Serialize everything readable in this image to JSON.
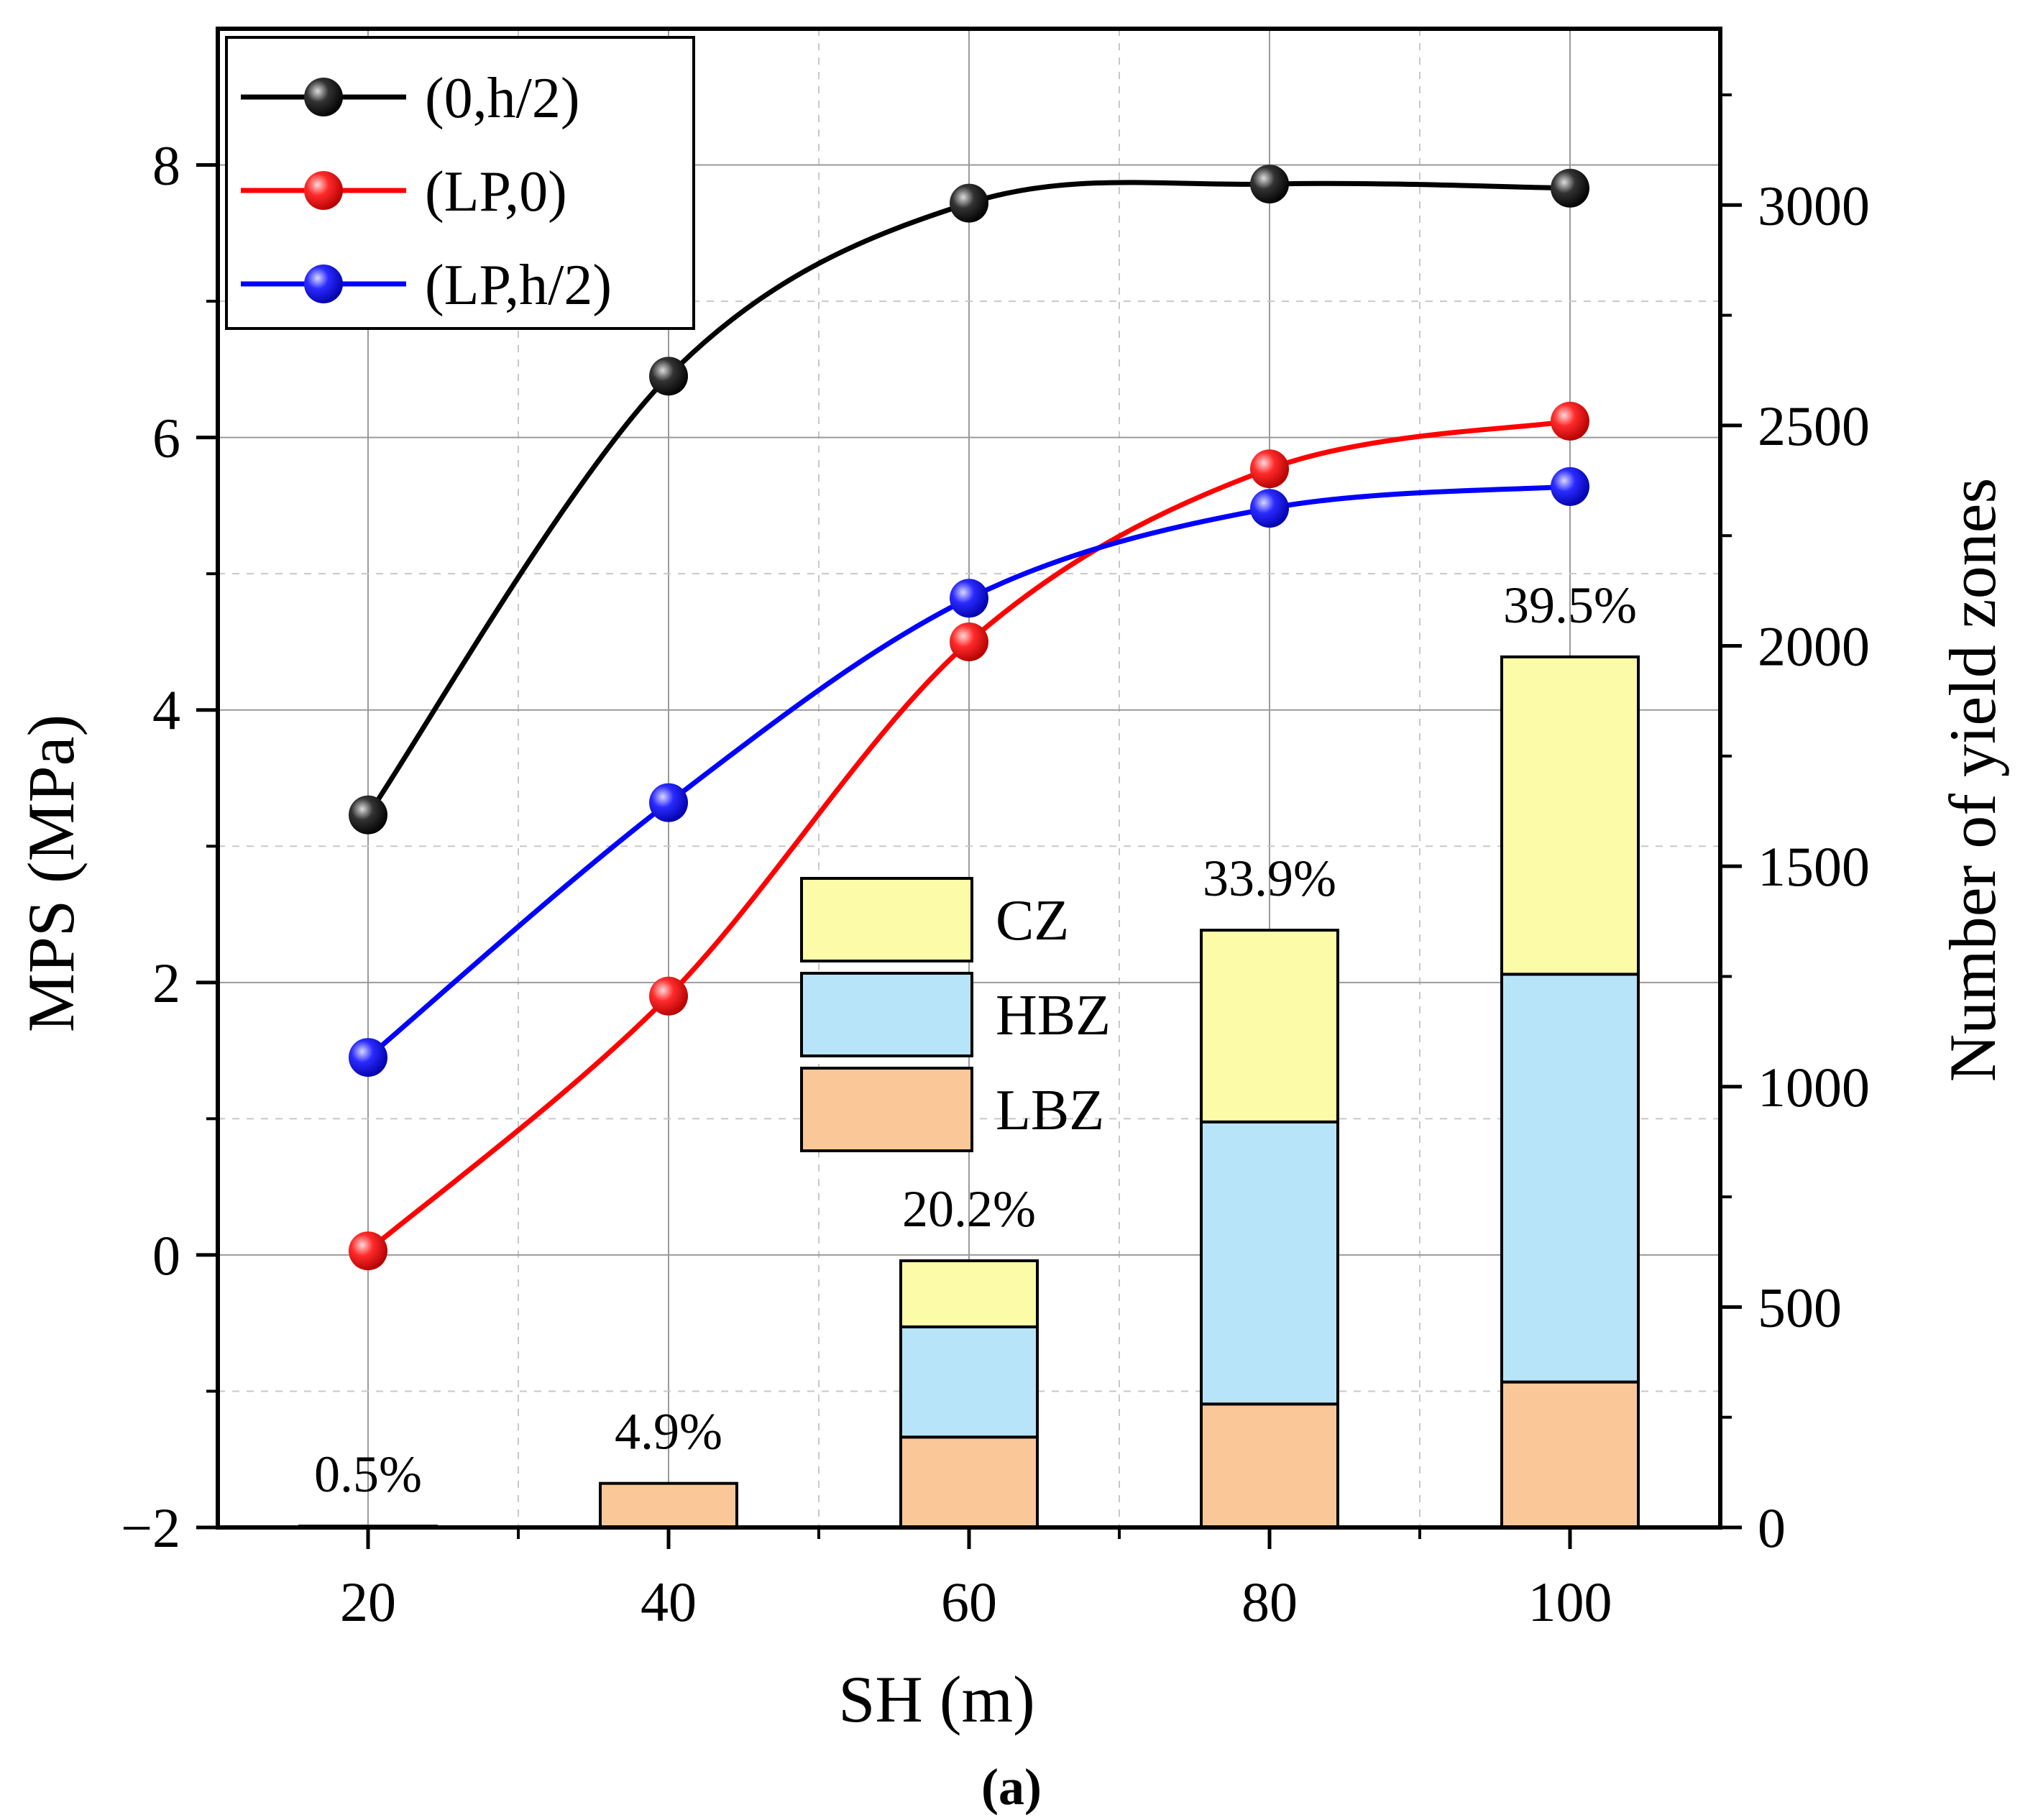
{
  "chart_data": {
    "type": "line+stacked-bar",
    "x": [
      20,
      40,
      60,
      80,
      100
    ],
    "xlabel": "SH (m)",
    "xticks": [
      "20",
      "40",
      "60",
      "80",
      "100"
    ],
    "xlim": [
      10,
      110
    ],
    "ylabel_left": "MPS (MPa)",
    "ylim_left": [
      -2,
      9
    ],
    "yticks_left": [
      "−2",
      "0",
      "2",
      "4",
      "6",
      "8"
    ],
    "ylabel_right": "Number of yield zones",
    "ylim_right": [
      0,
      3400
    ],
    "yticks_right": [
      "0",
      "500",
      "1000",
      "1500",
      "2000",
      "2500",
      "3000"
    ],
    "grid": true,
    "caption": "(a)",
    "line_series": [
      {
        "name": "(0,h/2)",
        "color": "#000000",
        "values": [
          3.23,
          6.45,
          7.72,
          7.86,
          7.83
        ]
      },
      {
        "name": "(LP,0)",
        "color": "#ff0000",
        "values": [
          0.03,
          1.9,
          4.5,
          5.77,
          6.12
        ]
      },
      {
        "name": "(LP,h/2)",
        "color": "#0000ff",
        "values": [
          1.45,
          3.32,
          4.82,
          5.48,
          5.64
        ]
      }
    ],
    "bar_series": [
      {
        "name": "LBZ",
        "color": "#fac898",
        "values": [
          3,
          100,
          205,
          280,
          330
        ]
      },
      {
        "name": "HBZ",
        "color": "#b8e4fa",
        "values": [
          0,
          0,
          250,
          640,
          925
        ]
      },
      {
        "name": "CZ",
        "color": "#fcfca8",
        "values": [
          0,
          0,
          150,
          435,
          720
        ]
      }
    ],
    "bar_percent_labels": [
      "0.5%",
      "4.9%",
      "20.2%",
      "33.9%",
      "39.5%"
    ]
  }
}
